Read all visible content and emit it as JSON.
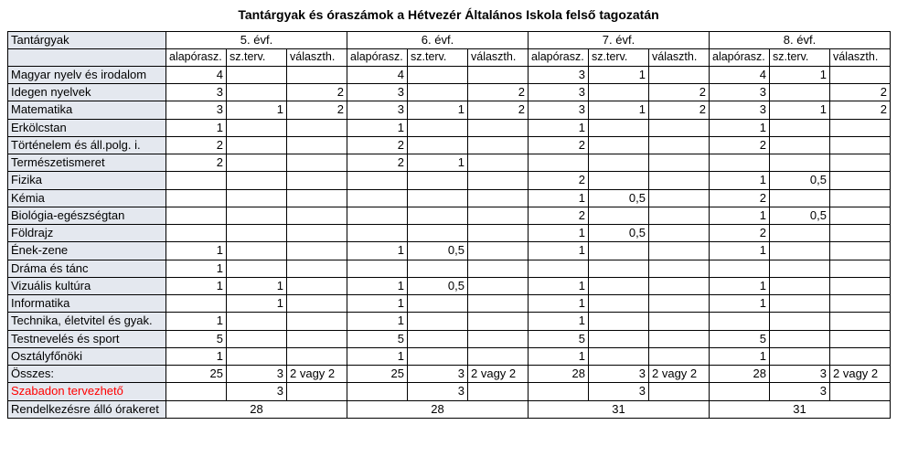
{
  "title": "Tantárgyak és óraszámok a Hétvezér Általános Iskola felső tagozatán",
  "headers": {
    "subject": "Tantárgyak",
    "grades": [
      "5. évf.",
      "6. évf.",
      "7. évf.",
      "8. évf."
    ],
    "subcols": [
      "alapórasz.",
      "sz.terv.",
      "választh."
    ]
  },
  "subjects": [
    {
      "name": "Magyar nyelv és irodalom",
      "g5": [
        "4",
        "",
        ""
      ],
      "g6": [
        "4",
        "",
        ""
      ],
      "g7": [
        "3",
        "1",
        ""
      ],
      "g8": [
        "4",
        "1",
        ""
      ]
    },
    {
      "name": "Idegen nyelvek",
      "g5": [
        "3",
        "",
        "2"
      ],
      "g6": [
        "3",
        "",
        "2"
      ],
      "g7": [
        "3",
        "",
        "2"
      ],
      "g8": [
        "3",
        "",
        "2"
      ]
    },
    {
      "name": "Matematika",
      "g5": [
        "3",
        "1",
        "2"
      ],
      "g6": [
        "3",
        "1",
        "2"
      ],
      "g7": [
        "3",
        "1",
        "2"
      ],
      "g8": [
        "3",
        "1",
        "2"
      ]
    },
    {
      "name": "Erkölcstan",
      "g5": [
        "1",
        "",
        ""
      ],
      "g6": [
        "1",
        "",
        ""
      ],
      "g7": [
        "1",
        "",
        ""
      ],
      "g8": [
        "1",
        "",
        ""
      ]
    },
    {
      "name": "Történelem és áll.polg. i.",
      "g5": [
        "2",
        "",
        ""
      ],
      "g6": [
        "2",
        "",
        ""
      ],
      "g7": [
        "2",
        "",
        ""
      ],
      "g8": [
        "2",
        "",
        ""
      ]
    },
    {
      "name": "Természetismeret",
      "g5": [
        "2",
        "",
        ""
      ],
      "g6": [
        "2",
        "1",
        ""
      ],
      "g7": [
        "",
        "",
        ""
      ],
      "g8": [
        "",
        "",
        ""
      ]
    },
    {
      "name": "Fizika",
      "g5": [
        "",
        "",
        ""
      ],
      "g6": [
        "",
        "",
        ""
      ],
      "g7": [
        "2",
        "",
        ""
      ],
      "g8": [
        "1",
        "0,5",
        ""
      ]
    },
    {
      "name": "Kémia",
      "g5": [
        "",
        "",
        ""
      ],
      "g6": [
        "",
        "",
        ""
      ],
      "g7": [
        "1",
        "0,5",
        ""
      ],
      "g8": [
        "2",
        "",
        ""
      ]
    },
    {
      "name": "Biológia-egészségtan",
      "g5": [
        "",
        "",
        ""
      ],
      "g6": [
        "",
        "",
        ""
      ],
      "g7": [
        "2",
        "",
        ""
      ],
      "g8": [
        "1",
        "0,5",
        ""
      ]
    },
    {
      "name": "Földrajz",
      "g5": [
        "",
        "",
        ""
      ],
      "g6": [
        "",
        "",
        ""
      ],
      "g7": [
        "1",
        "0,5",
        ""
      ],
      "g8": [
        "2",
        "",
        ""
      ]
    },
    {
      "name": "Ének-zene",
      "g5": [
        "1",
        "",
        ""
      ],
      "g6": [
        "1",
        "0,5",
        ""
      ],
      "g7": [
        "1",
        "",
        ""
      ],
      "g8": [
        "1",
        "",
        ""
      ]
    },
    {
      "name": "Dráma és tánc",
      "g5": [
        "1",
        "",
        ""
      ],
      "g6": [
        "",
        "",
        ""
      ],
      "g7": [
        "",
        "",
        ""
      ],
      "g8": [
        "",
        "",
        ""
      ]
    },
    {
      "name": "Vizuális kultúra",
      "g5": [
        "1",
        "1",
        ""
      ],
      "g6": [
        "1",
        "0,5",
        ""
      ],
      "g7": [
        "1",
        "",
        ""
      ],
      "g8": [
        "1",
        "",
        ""
      ]
    },
    {
      "name": "Informatika",
      "g5": [
        "",
        "1",
        ""
      ],
      "g6": [
        "1",
        "",
        ""
      ],
      "g7": [
        "1",
        "",
        ""
      ],
      "g8": [
        "1",
        "",
        ""
      ]
    },
    {
      "name": "Technika, életvitel és gyak.",
      "g5": [
        "1",
        "",
        ""
      ],
      "g6": [
        "1",
        "",
        ""
      ],
      "g7": [
        "1",
        "",
        ""
      ],
      "g8": [
        "",
        "",
        ""
      ]
    },
    {
      "name": "Testnevelés és sport",
      "g5": [
        "5",
        "",
        ""
      ],
      "g6": [
        "5",
        "",
        ""
      ],
      "g7": [
        "5",
        "",
        ""
      ],
      "g8": [
        "5",
        "",
        ""
      ]
    },
    {
      "name": "Osztályfőnöki",
      "g5": [
        "1",
        "",
        ""
      ],
      "g6": [
        "1",
        "",
        ""
      ],
      "g7": [
        "1",
        "",
        ""
      ],
      "g8": [
        "1",
        "",
        ""
      ]
    }
  ],
  "total_row": {
    "name": "Összes:",
    "g5": [
      "25",
      "3",
      "2 vagy 2"
    ],
    "g6": [
      "25",
      "3",
      "2 vagy 2"
    ],
    "g7": [
      "28",
      "3",
      "2 vagy 2"
    ],
    "g8": [
      "28",
      "3",
      "2 vagy 2"
    ]
  },
  "free_row": {
    "name": "Szabadon tervezhető",
    "g5": [
      "",
      "3",
      ""
    ],
    "g6": [
      "",
      "3",
      ""
    ],
    "g7": [
      "",
      "3",
      ""
    ],
    "g8": [
      "",
      "3",
      ""
    ]
  },
  "available_row": {
    "name": "Rendelkezésre álló órakeret",
    "values": [
      "28",
      "28",
      "31",
      "31"
    ]
  }
}
